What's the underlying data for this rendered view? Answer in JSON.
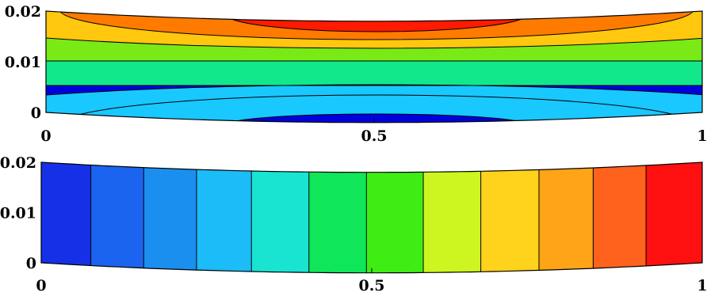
{
  "chart_data": [
    {
      "type": "heatmap",
      "title": "",
      "xlabel": "",
      "ylabel": "",
      "xlim": [
        0,
        1
      ],
      "ylim": [
        -0.003,
        0.021
      ],
      "x_ticks": [
        "0",
        "0.5",
        "1"
      ],
      "y_ticks": [
        "0",
        "0.01",
        "0.02"
      ],
      "domain": {
        "bottom_edge": {
          "at_x0": 0.0,
          "at_x05": -0.002,
          "at_x1": 0.0
        },
        "top_edge": {
          "at_x0": 0.02,
          "at_x05": 0.018,
          "at_x1": 0.02
        }
      },
      "contour_pattern": "horizontal bands, curving toward the ends; maximum near top center, minimum near bottom center",
      "levels": 7,
      "level_colors": [
        "#0000dd",
        "#1e78ff",
        "#19c8ff",
        "#11e88c",
        "#7aea16",
        "#ffc70e",
        "#ff7b00",
        "#ff1a00"
      ],
      "grid": false
    },
    {
      "type": "heatmap",
      "title": "",
      "xlabel": "",
      "ylabel": "",
      "xlim": [
        0,
        1
      ],
      "ylim": [
        -0.003,
        0.021
      ],
      "x_ticks": [
        "0",
        "0.5",
        "1"
      ],
      "y_ticks": [
        "0",
        "0.01",
        "0.02"
      ],
      "domain": {
        "bottom_edge": {
          "at_x0": 0.0,
          "at_x05": -0.002,
          "at_x1": 0.0
        },
        "top_edge": {
          "at_x0": 0.02,
          "at_x05": 0.018,
          "at_x1": 0.02
        }
      },
      "contour_pattern": "vertical bands, value increasing left to right",
      "band_boundaries_x": [
        0.075,
        0.155,
        0.235,
        0.318,
        0.405,
        0.492,
        0.578,
        0.665,
        0.753,
        0.835,
        0.915
      ],
      "band_colors": [
        "#1530e6",
        "#1a64f0",
        "#1b8fef",
        "#1bbcf7",
        "#19e4d2",
        "#10e65a",
        "#3fed14",
        "#cdf51f",
        "#ffd21c",
        "#ffa317",
        "#ff621d",
        "#ff1010"
      ],
      "grid": false
    }
  ]
}
